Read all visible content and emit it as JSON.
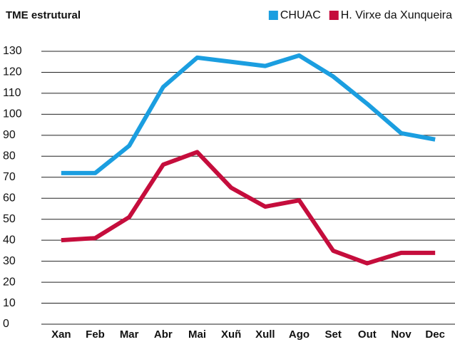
{
  "chart_data": {
    "type": "line",
    "title": "TME estrutural",
    "categories": [
      "Xan",
      "Feb",
      "Mar",
      "Abr",
      "Mai",
      "Xuñ",
      "Xull",
      "Ago",
      "Set",
      "Out",
      "Nov",
      "Dec"
    ],
    "series": [
      {
        "name": "CHUAC",
        "color": "#1b9ee0",
        "values": [
          72,
          72,
          85,
          113,
          127,
          125,
          123,
          128,
          118,
          105,
          91,
          88
        ]
      },
      {
        "name": "H. Virxe da Xunqueira",
        "color": "#c50d3c",
        "values": [
          40,
          41,
          51,
          76,
          82,
          65,
          56,
          59,
          35,
          29,
          34,
          34
        ]
      }
    ],
    "ylim": [
      0,
      130
    ],
    "yticks": [
      0,
      10,
      20,
      30,
      40,
      50,
      60,
      70,
      80,
      90,
      100,
      110,
      120,
      130
    ],
    "grid": true
  }
}
